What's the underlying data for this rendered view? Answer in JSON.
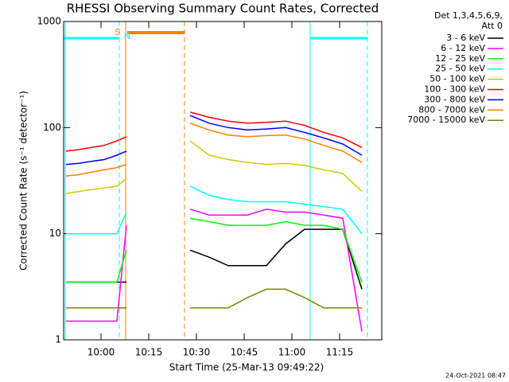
{
  "chart_data": {
    "type": "line",
    "title": "RHESSI Observing Summary Count Rates, Corrected",
    "xlabel": "Start Time (25-Mar-13 09:49:22)",
    "ylabel": "Corrected Count Rate (s⁻¹ detector⁻¹)",
    "legend_header": [
      "Det 1,3,4,5,6,9,",
      "Att 0"
    ],
    "timestamp": "24-Oct-2021 08:47",
    "annotations": [
      {
        "text": "S",
        "color": "#ff8000"
      },
      {
        "text": "N",
        "color": "#00ffff"
      }
    ],
    "log_y": true,
    "xlim": [
      48.25,
      148.25
    ],
    "ylim": [
      1,
      1000
    ],
    "xticks": [
      {
        "value": 60,
        "label": "10:00"
      },
      {
        "value": 75,
        "label": "10:15"
      },
      {
        "value": 90,
        "label": "10:30"
      },
      {
        "value": 105,
        "label": "10:45"
      },
      {
        "value": 120,
        "label": "11:00"
      },
      {
        "value": 135,
        "label": "11:15"
      }
    ],
    "yticks": [
      1,
      10,
      100,
      1000
    ],
    "x": [
      49,
      53,
      57,
      61,
      65,
      68,
      78,
      88,
      94,
      100,
      106,
      112,
      118,
      124,
      130,
      136,
      142
    ],
    "series": [
      {
        "name": "3 - 6 keV",
        "color": "#000000",
        "values": [
          3.5,
          3.5,
          3.5,
          3.5,
          3.5,
          3.5,
          null,
          7,
          6,
          5,
          5,
          5,
          8,
          11,
          11,
          11,
          3
        ]
      },
      {
        "name": "6 - 12 keV",
        "color": "#ff00ff",
        "values": [
          1.5,
          1.5,
          1.5,
          1.5,
          1.5,
          12,
          null,
          17,
          15,
          15,
          15,
          17,
          16,
          16,
          15,
          14,
          1.2
        ]
      },
      {
        "name": "12 - 25 keV",
        "color": "#00ff00",
        "values": [
          3.5,
          3.5,
          3.5,
          3.5,
          3.5,
          7,
          null,
          14,
          13,
          12,
          12,
          12,
          13,
          12,
          12,
          11,
          3.5
        ]
      },
      {
        "name": "25 - 50 keV",
        "color": "#00ffff",
        "values": [
          10,
          10,
          10,
          10,
          10,
          16,
          null,
          28,
          23,
          21,
          20,
          20,
          20,
          19,
          18,
          17,
          10
        ]
      },
      {
        "name": "50 - 100 keV",
        "color": "#cccc00",
        "values": [
          24,
          25,
          26,
          27,
          28,
          33,
          null,
          75,
          55,
          50,
          47,
          45,
          46,
          44,
          40,
          37,
          25
        ]
      },
      {
        "name": "100 - 300 keV",
        "color": "#ff0000",
        "values": [
          60,
          62,
          65,
          68,
          75,
          82,
          null,
          140,
          125,
          115,
          110,
          112,
          115,
          105,
          90,
          80,
          65
        ]
      },
      {
        "name": "300 - 800 keV",
        "color": "#0000ff",
        "values": [
          45,
          46,
          48,
          50,
          55,
          60,
          null,
          130,
          110,
          100,
          95,
          97,
          100,
          90,
          80,
          70,
          55
        ]
      },
      {
        "name": "800 - 7000 keV",
        "color": "#ff8000",
        "values": [
          35,
          36,
          38,
          40,
          42,
          45,
          null,
          110,
          95,
          85,
          82,
          84,
          85,
          78,
          68,
          60,
          47
        ]
      },
      {
        "name": "7000 - 15000 keV",
        "color": "#808000",
        "values": [
          2,
          2,
          2,
          2,
          2,
          2,
          null,
          2,
          2,
          2,
          2.5,
          3,
          3,
          2.5,
          2,
          2,
          2
        ]
      }
    ]
  }
}
